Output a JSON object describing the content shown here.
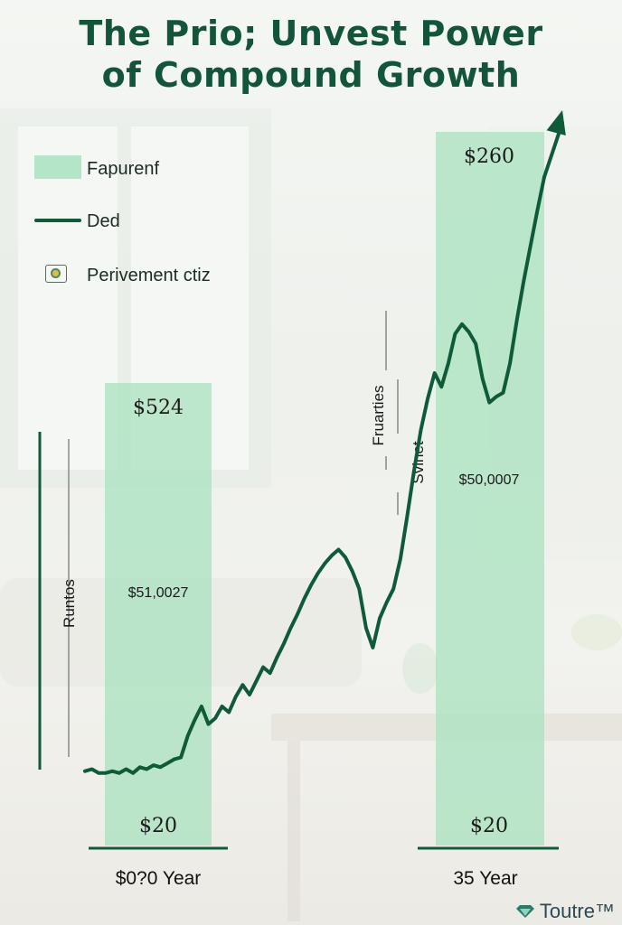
{
  "title": {
    "line1": "The Prio; Unvest Power",
    "line2": "of Compound Growth"
  },
  "legend": {
    "items": [
      {
        "label": "Fapurenf",
        "kind": "bar"
      },
      {
        "label": "Ded",
        "kind": "line"
      },
      {
        "label": "Perivement ctiz",
        "kind": "icon"
      }
    ]
  },
  "watermark": "Toutre™",
  "colors": {
    "bar": "#a8e2bf",
    "line": "#0e5a39",
    "title": "#12553a"
  },
  "chart_data": {
    "type": "bar",
    "categories": [
      "$0?0 Year",
      "35 Year"
    ],
    "bars": [
      {
        "top_label": "$524",
        "mid_label": "$51,0027",
        "bottom_label": "$20",
        "x_label": "$0?0 Year",
        "value": 524
      },
      {
        "top_label": "$260",
        "mid_label": "$50,0007",
        "bottom_label": "$20",
        "x_label": "35 Year",
        "value": 260
      }
    ],
    "annotations": [
      "Runtos",
      "Fruarties",
      "Svinet"
    ],
    "line_series": {
      "values": [
        2,
        3,
        1,
        1,
        2,
        1,
        3,
        1,
        4,
        3,
        5,
        4,
        6,
        8,
        9,
        20,
        28,
        35,
        26,
        29,
        35,
        32,
        40,
        46,
        41,
        48,
        55,
        52,
        60,
        67,
        75,
        82,
        90,
        97,
        103,
        108,
        112,
        115,
        111,
        104,
        95,
        75,
        65,
        80,
        88,
        95,
        110,
        132,
        155,
        176,
        192,
        205,
        198,
        210,
        225,
        230,
        226,
        220,
        202,
        190,
        193,
        195,
        210,
        232,
        252,
        270,
        288,
        305
      ]
    }
  }
}
